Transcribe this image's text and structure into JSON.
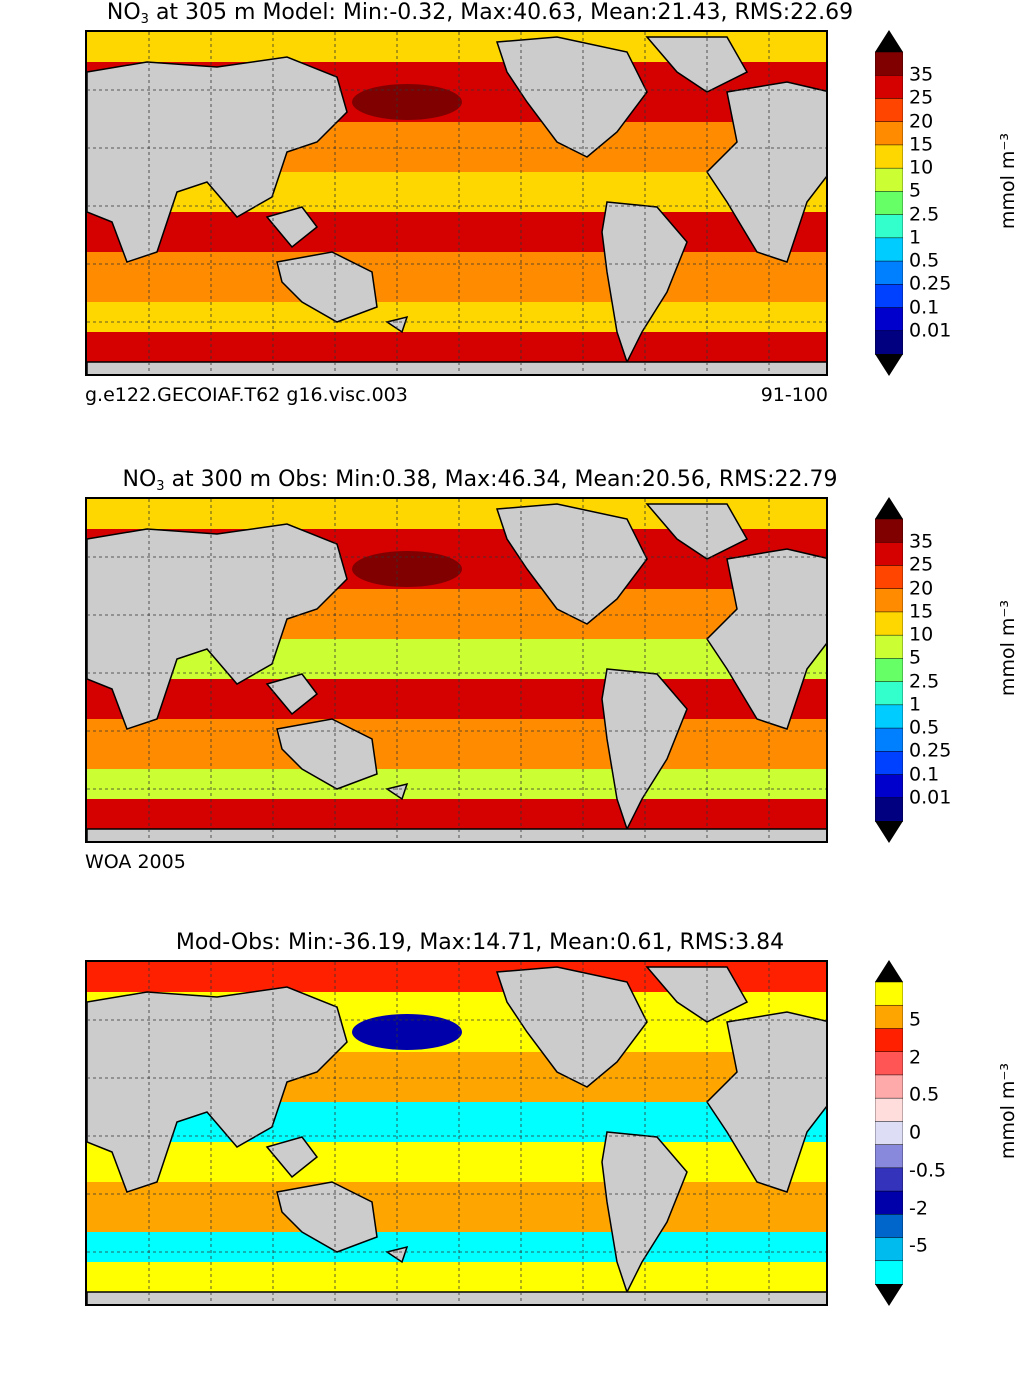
{
  "panels": [
    {
      "title_pre": "NO",
      "title_sub": "3",
      "title_post": " at 305 m Model: Min:-0.32, Max:40.63, Mean:21.43, RMS:22.69",
      "left_note": "g.e122.GECOIAF.T62 g16.visc.003",
      "right_note": "91-100",
      "colorbar": {
        "ticks": [
          "35",
          "25",
          "20",
          "15",
          "10",
          "5",
          "2.5",
          "1",
          "0.5",
          "0.25",
          "0.1",
          "0.01"
        ],
        "colors": [
          "#800000",
          "#d50000",
          "#ff4500",
          "#ff8c00",
          "#ffd700",
          "#ccff33",
          "#66ff66",
          "#33ffcc",
          "#00ccff",
          "#0080ff",
          "#0040ff",
          "#0000cc",
          "#000080"
        ],
        "unit": "mmol m⁻³"
      },
      "field_colors": {
        "high": "#d50000",
        "mid": "#ff8c00",
        "low": "#ffd700",
        "peak": "#800000",
        "ice": "#ffd700"
      }
    },
    {
      "title_pre": "NO",
      "title_sub": "3",
      "title_post": " at 300 m Obs: Min:0.38, Max:46.34, Mean:20.56, RMS:22.79",
      "left_note": "WOA 2005",
      "right_note": "",
      "colorbar": {
        "ticks": [
          "35",
          "25",
          "20",
          "15",
          "10",
          "5",
          "2.5",
          "1",
          "0.5",
          "0.25",
          "0.1",
          "0.01"
        ],
        "colors": [
          "#800000",
          "#d50000",
          "#ff4500",
          "#ff8c00",
          "#ffd700",
          "#ccff33",
          "#66ff66",
          "#33ffcc",
          "#00ccff",
          "#0080ff",
          "#0040ff",
          "#0000cc",
          "#000080"
        ],
        "unit": "mmol m⁻³"
      },
      "field_colors": {
        "high": "#d50000",
        "mid": "#ff8c00",
        "low": "#ccff33",
        "peak": "#800000",
        "ice": "#ffd700"
      }
    },
    {
      "title_pre": "Mod-Obs: Min:-36.19, Max:14.71, Mean:0.61, RMS:3.84",
      "title_sub": "",
      "title_post": "",
      "left_note": "",
      "right_note": "",
      "colorbar": {
        "ticks": [
          "5",
          "2",
          "0.5",
          "0",
          "-0.5",
          "-2",
          "-5"
        ],
        "colors": [
          "#ffff00",
          "#ffa500",
          "#ff2000",
          "#ff5555",
          "#ffaaaa",
          "#ffdddd",
          "#ddddf5",
          "#8888dd",
          "#3333bb",
          "#0000aa",
          "#0066cc",
          "#00bbee",
          "#00ffff"
        ],
        "unit": "mmol m⁻³"
      },
      "field_colors": {
        "high": "#ffff00",
        "mid": "#ffa500",
        "low": "#00ffff",
        "peak": "#0000aa",
        "ice": "#ff2000"
      }
    }
  ]
}
